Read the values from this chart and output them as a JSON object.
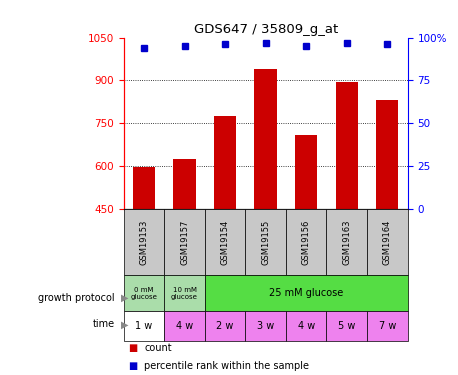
{
  "title": "GDS647 / 35809_g_at",
  "samples": [
    "GSM19153",
    "GSM19157",
    "GSM19154",
    "GSM19155",
    "GSM19156",
    "GSM19163",
    "GSM19164"
  ],
  "counts": [
    597,
    625,
    775,
    940,
    710,
    893,
    830
  ],
  "percentiles": [
    94,
    95,
    96,
    97,
    95,
    97,
    96
  ],
  "ylim_left": [
    450,
    1050
  ],
  "ylim_right": [
    0,
    100
  ],
  "yticks_left": [
    450,
    600,
    750,
    900,
    1050
  ],
  "yticks_right": [
    0,
    25,
    50,
    75,
    100
  ],
  "bar_color": "#cc0000",
  "dot_color": "#0000cc",
  "grid_color": "#000000",
  "time_labels": [
    "1 w",
    "4 w",
    "2 w",
    "3 w",
    "4 w",
    "5 w",
    "7 w"
  ],
  "time_colors": [
    "#ffffff",
    "#ee82ee",
    "#ee82ee",
    "#ee82ee",
    "#ee82ee",
    "#ee82ee",
    "#ee82ee"
  ],
  "sample_bg": "#c8c8c8",
  "growth_light_green": "#aaddaa",
  "growth_bright_green": "#55dd44"
}
